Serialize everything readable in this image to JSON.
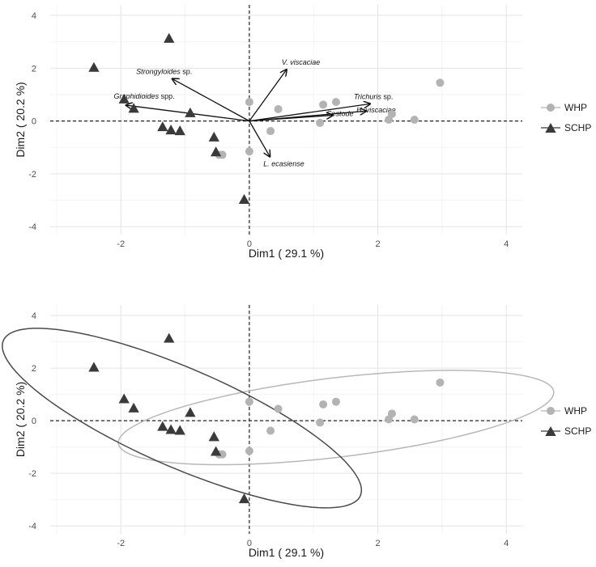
{
  "chart_data": [
    {
      "type": "scatter",
      "panel": "biplot",
      "xlabel": "Dim1 ( 29.1 %)",
      "ylabel": "Dim2 ( 20.2 %)",
      "xlim": [
        -3.1,
        4.25
      ],
      "ylim": [
        -4.3,
        4.4
      ],
      "x_ticks": [
        -2,
        0,
        2,
        4
      ],
      "y_ticks": [
        -4,
        -2,
        0,
        2,
        4
      ],
      "x_tick_labels": [
        "-2",
        "0",
        "2",
        "4"
      ],
      "y_tick_labels": [
        "-4",
        "-2",
        "0",
        "2",
        "4"
      ],
      "grid": true,
      "reference_lines": {
        "x": 0,
        "y": 0,
        "style": "dashed"
      },
      "legend": {
        "placement": "right"
      },
      "series": [
        {
          "name": "WHP",
          "marker": "circle",
          "color": "#b3b3b3",
          "points": [
            [
              0,
              0.72
            ],
            [
              0.45,
              0.45
            ],
            [
              0.33,
              -0.38
            ],
            [
              0,
              -1.15
            ],
            [
              -0.42,
              -1.28
            ],
            [
              -0.47,
              -1.28
            ],
            [
              1.15,
              0.62
            ],
            [
              1.35,
              0.72
            ],
            [
              1.1,
              -0.07
            ],
            [
              2.22,
              0.27
            ],
            [
              2.17,
              0.05
            ],
            [
              2.57,
              0.05
            ],
            [
              2.97,
              1.45
            ]
          ]
        },
        {
          "name": "SCHP",
          "marker": "triangle",
          "color": "#3a3a3a",
          "points": [
            [
              -2.42,
              2.02
            ],
            [
              -1.25,
              3.12
            ],
            [
              -1.95,
              0.82
            ],
            [
              -1.8,
              0.47
            ],
            [
              -1.35,
              -0.23
            ],
            [
              -1.22,
              -0.35
            ],
            [
              -1.08,
              -0.38
            ],
            [
              -0.92,
              0.3
            ],
            [
              -0.55,
              -0.62
            ],
            [
              -0.52,
              -1.18
            ],
            [
              -0.08,
              -2.98
            ]
          ]
        }
      ],
      "vectors": [
        {
          "label": "Strongyloides",
          "suffix": " sp.",
          "x": -1.2,
          "y": 1.6
        },
        {
          "label": "V. viscaciae",
          "suffix": "",
          "x": 0.58,
          "y": 1.95
        },
        {
          "label": "Graphidioides",
          "suffix": " spp.",
          "x": -1.92,
          "y": 0.6
        },
        {
          "label": "Trichuris",
          "suffix": " sp.",
          "x": 1.88,
          "y": 0.65
        },
        {
          "label": "H. viscaciae",
          "suffix": "",
          "x": 1.82,
          "y": 0.38
        },
        {
          "label": "Cestode",
          "suffix": "",
          "x": 1.3,
          "y": 0.22
        },
        {
          "label": "L. ecasiense",
          "suffix": "",
          "x": 0.32,
          "y": -1.35
        }
      ]
    },
    {
      "type": "scatter",
      "panel": "ellipses",
      "xlabel": "Dim1 ( 29.1 %)",
      "ylabel": "Dim2 ( 20.2 %)",
      "xlim": [
        -3.1,
        4.25
      ],
      "ylim": [
        -4.3,
        4.4
      ],
      "x_ticks": [
        -2,
        0,
        2,
        4
      ],
      "y_ticks": [
        -4,
        -2,
        0,
        2,
        4
      ],
      "x_tick_labels": [
        "-2",
        "0",
        "2",
        "4"
      ],
      "y_tick_labels": [
        "-4",
        "-2",
        "0",
        "2",
        "4"
      ],
      "grid": true,
      "reference_lines": {
        "x": 0,
        "y": 0,
        "style": "dashed"
      },
      "legend": {
        "placement": "right"
      },
      "series": [
        {
          "name": "WHP",
          "marker": "circle",
          "color": "#b3b3b3",
          "same_points_as_panel": 0
        },
        {
          "name": "SCHP",
          "marker": "triangle",
          "color": "#3a3a3a",
          "same_points_as_panel": 0
        }
      ],
      "confidence_ellipses": [
        {
          "group": "WHP",
          "color": "#b8b8b8",
          "center": [
            1.35,
            0.12
          ],
          "semi_major": 3.55,
          "semi_minor": 1.45,
          "angle_deg": 19
        },
        {
          "group": "SCHP",
          "color": "#4a4a4a",
          "center": [
            -1.05,
            0.1
          ],
          "semi_major": 4.2,
          "semi_minor": 1.35,
          "angle_deg": -52
        }
      ]
    }
  ]
}
